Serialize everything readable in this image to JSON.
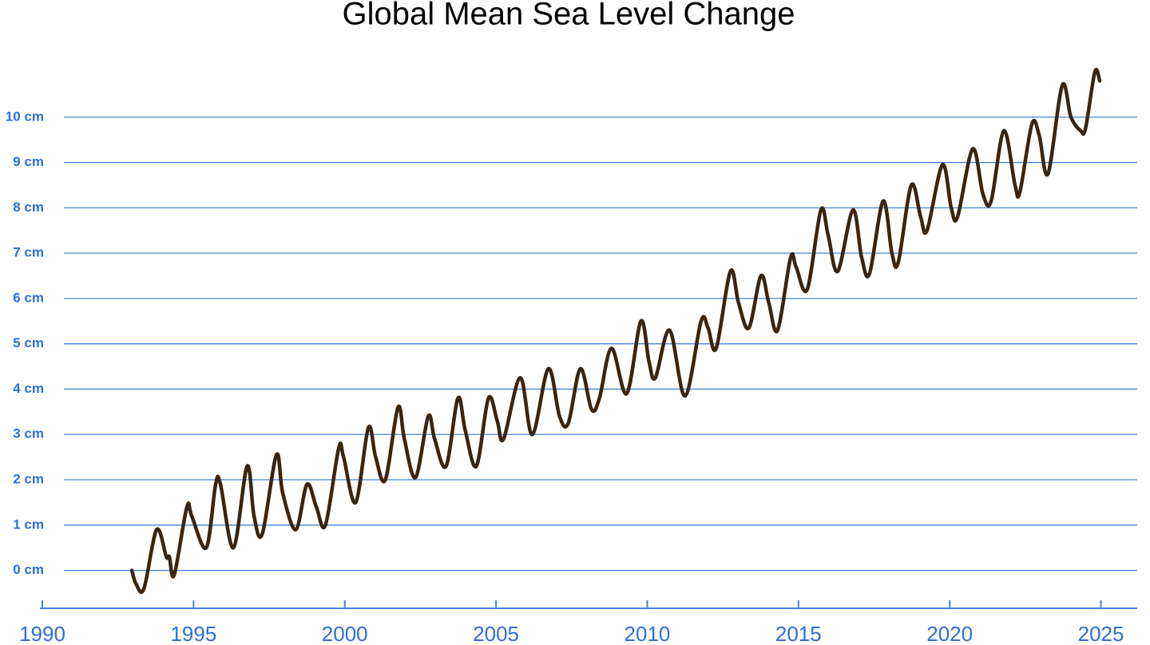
{
  "chart_data": {
    "type": "line",
    "title": "Global Mean Sea Level Change",
    "xlim": [
      1990,
      2026.2
    ],
    "ylim": [
      -0.8,
      11.0
    ],
    "xticks": [
      1990,
      1995,
      2000,
      2005,
      2010,
      2015,
      2020,
      2025
    ],
    "yticks": [
      {
        "value": 0,
        "label": "0 cm"
      },
      {
        "value": 1,
        "label": "1 cm"
      },
      {
        "value": 2,
        "label": "2 cm"
      },
      {
        "value": 3,
        "label": "3 cm"
      },
      {
        "value": 4,
        "label": "4 cm"
      },
      {
        "value": 5,
        "label": "5 cm"
      },
      {
        "value": 6,
        "label": "6 cm"
      },
      {
        "value": 7,
        "label": "7 cm"
      },
      {
        "value": 8,
        "label": "8 cm"
      },
      {
        "value": 9,
        "label": "9 cm"
      },
      {
        "value": 10,
        "label": "10 cm"
      }
    ],
    "grid": true,
    "x": [
      1992.96,
      1993.1,
      1993.36,
      1993.78,
      1994.1,
      1994.2,
      1994.36,
      1994.78,
      1994.94,
      1995.42,
      1995.73,
      1995.89,
      1996.32,
      1996.77,
      1997.0,
      1997.27,
      1997.74,
      1997.95,
      1998.38,
      1998.75,
      1999.06,
      1999.36,
      1999.8,
      1999.96,
      2000.36,
      2000.78,
      2001.02,
      2001.34,
      2001.76,
      2001.97,
      2002.34,
      2002.76,
      2002.97,
      2003.35,
      2003.74,
      2003.98,
      2004.35,
      2004.75,
      2005.04,
      2005.25,
      2005.8,
      2006.2,
      2006.73,
      2007.1,
      2007.39,
      2007.79,
      2008.16,
      2008.42,
      2008.82,
      2009.32,
      2009.79,
      2010.06,
      2010.27,
      2010.74,
      2011.25,
      2011.78,
      2012.01,
      2012.28,
      2012.75,
      2013.02,
      2013.36,
      2013.76,
      2014.02,
      2014.31,
      2014.74,
      2014.92,
      2015.29,
      2015.74,
      2015.98,
      2016.3,
      2016.8,
      2017.09,
      2017.35,
      2017.8,
      2018.09,
      2018.3,
      2018.73,
      2019.04,
      2019.25,
      2019.76,
      2020.05,
      2020.26,
      2020.76,
      2021.1,
      2021.37,
      2021.79,
      2022.16,
      2022.32,
      2022.72,
      2022.96,
      2023.25,
      2023.72,
      2024.01,
      2024.33,
      2024.49,
      2024.8,
      2024.96
    ],
    "series": [
      {
        "name": "Global mean sea level",
        "color": "#3a2510",
        "values": [
          0.0,
          -0.3,
          -0.4,
          0.9,
          0.3,
          0.3,
          -0.1,
          1.4,
          1.2,
          0.5,
          1.9,
          1.9,
          0.5,
          2.3,
          1.2,
          0.8,
          2.55,
          1.7,
          0.9,
          1.9,
          1.4,
          1.0,
          2.7,
          2.5,
          1.5,
          3.15,
          2.5,
          2.0,
          3.6,
          2.9,
          2.05,
          3.4,
          2.9,
          2.3,
          3.8,
          3.1,
          2.3,
          3.8,
          3.3,
          2.9,
          4.25,
          3.0,
          4.45,
          3.4,
          3.25,
          4.45,
          3.55,
          3.8,
          4.9,
          3.9,
          5.5,
          4.6,
          4.25,
          5.3,
          3.85,
          5.5,
          5.35,
          4.9,
          6.6,
          5.9,
          5.35,
          6.5,
          5.9,
          5.3,
          6.9,
          6.7,
          6.2,
          7.95,
          7.4,
          6.6,
          7.95,
          6.9,
          6.55,
          8.15,
          7.0,
          6.8,
          8.5,
          7.8,
          7.5,
          8.95,
          8.0,
          7.8,
          9.3,
          8.3,
          8.15,
          9.7,
          8.5,
          8.35,
          9.85,
          9.6,
          8.75,
          10.7,
          10.0,
          9.7,
          9.75,
          11.0,
          10.8
        ]
      }
    ]
  }
}
